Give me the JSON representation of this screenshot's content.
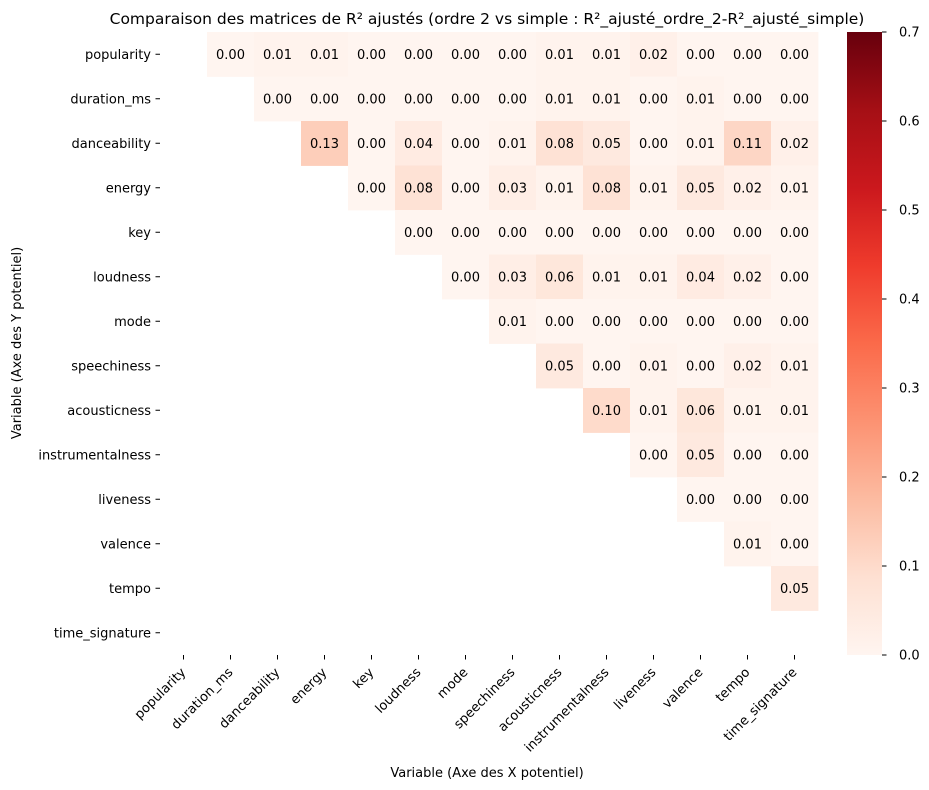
{
  "chart_data": {
    "type": "heatmap",
    "title": "Comparaison des matrices de R² ajustés (ordre 2 vs simple : R²_ajusté_ordre_2-R²_ajusté_simple)",
    "xlabel": "Variable (Axe des X potentiel)",
    "ylabel": "Variable (Axe des Y potentiel)",
    "variables": [
      "popularity",
      "duration_ms",
      "danceability",
      "energy",
      "key",
      "loudness",
      "mode",
      "speechiness",
      "acousticness",
      "instrumentalness",
      "liveness",
      "valence",
      "tempo",
      "time_signature"
    ],
    "colormap": "Reds",
    "vmin": 0.0,
    "vmax": 0.7,
    "colorbar_ticks": [
      "0.0",
      "0.1",
      "0.2",
      "0.3",
      "0.4",
      "0.5",
      "0.6",
      "0.7"
    ],
    "mask": "upper triangle only (row < column)",
    "values": [
      [
        null,
        0.0,
        0.01,
        0.01,
        0.0,
        0.0,
        0.0,
        0.0,
        0.01,
        0.01,
        0.02,
        0.0,
        0.0,
        0.0
      ],
      [
        null,
        null,
        0.0,
        0.0,
        0.0,
        0.0,
        0.0,
        0.0,
        0.01,
        0.01,
        0.0,
        0.01,
        0.0,
        0.0
      ],
      [
        null,
        null,
        null,
        0.13,
        0.0,
        0.04,
        0.0,
        0.01,
        0.08,
        0.05,
        0.0,
        0.01,
        0.11,
        0.02
      ],
      [
        null,
        null,
        null,
        null,
        0.0,
        0.08,
        0.0,
        0.03,
        0.01,
        0.08,
        0.01,
        0.05,
        0.02,
        0.01
      ],
      [
        null,
        null,
        null,
        null,
        null,
        0.0,
        0.0,
        0.0,
        0.0,
        0.0,
        0.0,
        0.0,
        0.0,
        0.0
      ],
      [
        null,
        null,
        null,
        null,
        null,
        null,
        0.0,
        0.03,
        0.06,
        0.01,
        0.01,
        0.04,
        0.02,
        0.0
      ],
      [
        null,
        null,
        null,
        null,
        null,
        null,
        null,
        0.01,
        0.0,
        0.0,
        0.0,
        0.0,
        0.0,
        0.0
      ],
      [
        null,
        null,
        null,
        null,
        null,
        null,
        null,
        null,
        0.05,
        0.0,
        0.01,
        0.0,
        0.02,
        0.01
      ],
      [
        null,
        null,
        null,
        null,
        null,
        null,
        null,
        null,
        null,
        0.1,
        0.01,
        0.06,
        0.01,
        0.01
      ],
      [
        null,
        null,
        null,
        null,
        null,
        null,
        null,
        null,
        null,
        null,
        0.0,
        0.05,
        0.0,
        0.0
      ],
      [
        null,
        null,
        null,
        null,
        null,
        null,
        null,
        null,
        null,
        null,
        null,
        0.0,
        0.0,
        0.0
      ],
      [
        null,
        null,
        null,
        null,
        null,
        null,
        null,
        null,
        null,
        null,
        null,
        null,
        0.01,
        0.0
      ],
      [
        null,
        null,
        null,
        null,
        null,
        null,
        null,
        null,
        null,
        null,
        null,
        null,
        null,
        0.05
      ],
      [
        null,
        null,
        null,
        null,
        null,
        null,
        null,
        null,
        null,
        null,
        null,
        null,
        null,
        null
      ]
    ]
  }
}
